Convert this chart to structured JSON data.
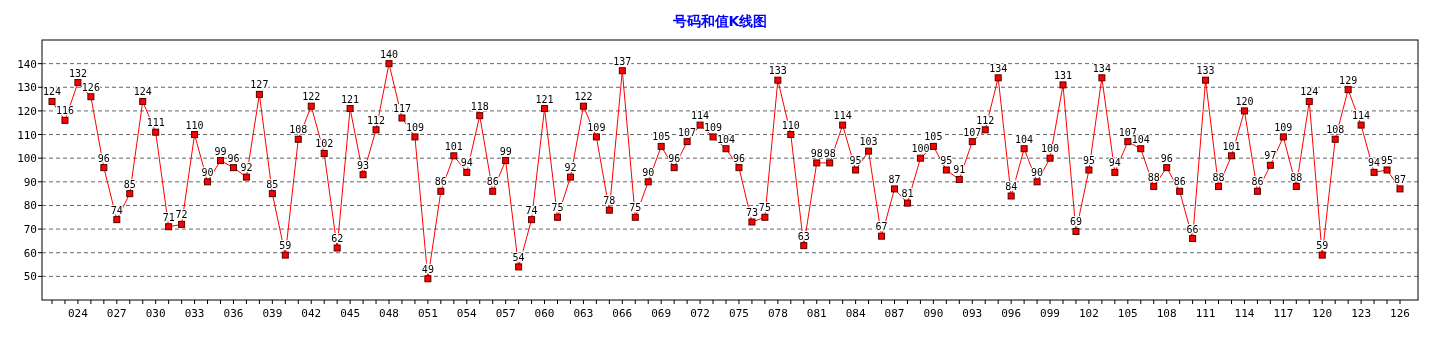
{
  "chart_data": {
    "type": "line",
    "title": "号码和值K线图",
    "categories": [
      null,
      null,
      "024",
      null,
      null,
      "027",
      null,
      null,
      "030",
      null,
      null,
      "033",
      null,
      null,
      "036",
      null,
      null,
      "039",
      null,
      null,
      "042",
      null,
      null,
      "045",
      null,
      null,
      "048",
      null,
      null,
      "051",
      null,
      null,
      "054",
      null,
      null,
      "057",
      null,
      null,
      "060",
      null,
      null,
      "063",
      null,
      null,
      "066",
      null,
      null,
      "069",
      null,
      null,
      "072",
      null,
      null,
      "075",
      null,
      null,
      "078",
      null,
      null,
      "081",
      null,
      null,
      "084",
      null,
      null,
      "087",
      null,
      null,
      "090",
      null,
      null,
      "093",
      null,
      null,
      "096",
      null,
      null,
      "099",
      null,
      null,
      "102",
      null,
      null,
      "105",
      null,
      null,
      "108",
      null,
      null,
      "111",
      null,
      null,
      "114",
      null,
      null,
      "117",
      null,
      null,
      "120",
      null,
      null,
      "123",
      null,
      null,
      "126"
    ],
    "series": [
      {
        "color": "#ff0000",
        "values": [
          124,
          116,
          132,
          126,
          96,
          74,
          85,
          124,
          111,
          71,
          72,
          110,
          90,
          99,
          96,
          92,
          127,
          85,
          59,
          108,
          122,
          102,
          62,
          121,
          93,
          112,
          140,
          117,
          109,
          49,
          86,
          101,
          94,
          118,
          86,
          99,
          54,
          74,
          121,
          75,
          92,
          122,
          109,
          78,
          137,
          75,
          90,
          105,
          96,
          107,
          114,
          109,
          104,
          96,
          73,
          75,
          133,
          110,
          63,
          98,
          98,
          114,
          95,
          103,
          67,
          87,
          81,
          100,
          105,
          95,
          91,
          107,
          112,
          134,
          84,
          104,
          90,
          100,
          131,
          69,
          95,
          134,
          94,
          107,
          104,
          88,
          96,
          86,
          66,
          133,
          88,
          101,
          120,
          86,
          97,
          109,
          88,
          124,
          59,
          108,
          129,
          114,
          94,
          95,
          87
        ]
      }
    ],
    "ylim": [
      40,
      150
    ],
    "yticks": [
      50,
      60,
      70,
      80,
      90,
      100,
      110,
      120,
      130,
      140
    ],
    "grid": "y",
    "marker": "square",
    "line_style": "solid",
    "data_labels": true
  }
}
